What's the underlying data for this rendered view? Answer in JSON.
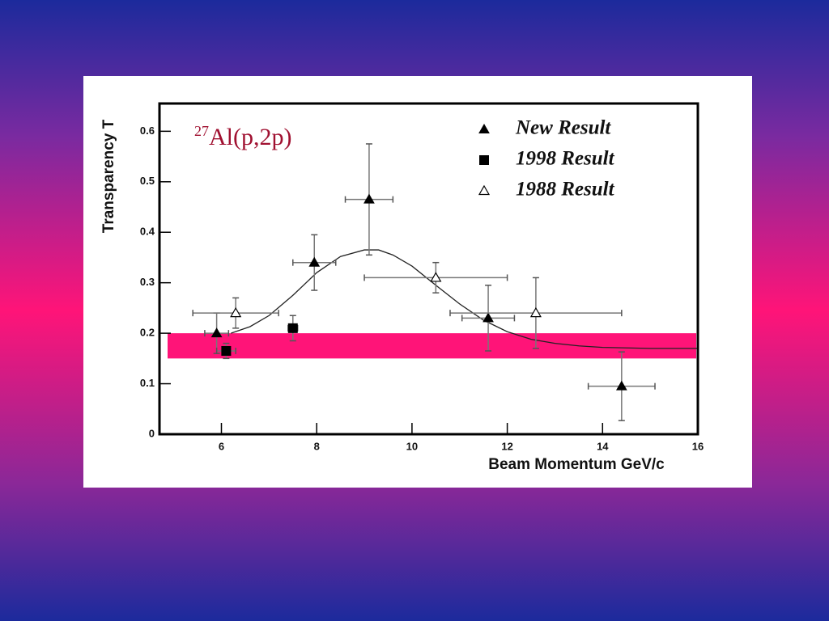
{
  "chart_data": {
    "type": "scatter",
    "x_label": "Beam Momentum GeV/c",
    "y_label": "Transparency T",
    "annotation": {
      "superscript": "27",
      "text": "Al(p,2p)"
    },
    "xlim": [
      4.7,
      16
    ],
    "ylim": [
      0,
      0.655
    ],
    "xticks": [
      6,
      8,
      10,
      12,
      14,
      16
    ],
    "yticks": [
      0,
      0.1,
      0.2,
      0.3,
      0.4,
      0.5,
      0.6
    ],
    "legend": "upper right",
    "band": {
      "y": [
        0.15,
        0.2
      ],
      "color": "#ff1478"
    },
    "fit_curve": {
      "color": "#222222",
      "x": [
        6.2,
        6.6,
        7.0,
        7.5,
        8.0,
        8.5,
        9.0,
        9.3,
        9.6,
        10.0,
        10.5,
        11.0,
        11.5,
        12.0,
        12.5,
        13.0,
        13.5,
        14.0,
        14.5,
        15.0,
        16.0
      ],
      "values": [
        0.2,
        0.213,
        0.235,
        0.275,
        0.32,
        0.352,
        0.365,
        0.365,
        0.355,
        0.333,
        0.295,
        0.258,
        0.226,
        0.203,
        0.188,
        0.18,
        0.175,
        0.172,
        0.171,
        0.17,
        0.17
      ]
    },
    "series": [
      {
        "name": "New Result",
        "color": "#000000",
        "marker": "triangle-filled",
        "x": [
          5.9,
          7.95,
          9.1,
          11.6,
          14.4
        ],
        "values": [
          0.2,
          0.34,
          0.465,
          0.23,
          0.095
        ],
        "xerr": [
          0.25,
          0.45,
          0.5,
          0.55,
          0.7
        ],
        "yerr": [
          0.04,
          0.055,
          0.11,
          0.065,
          0.068
        ]
      },
      {
        "name": "1998 Result",
        "color": "#000000",
        "marker": "square-filled",
        "x": [
          6.1,
          7.5
        ],
        "values": [
          0.165,
          0.21
        ],
        "xerr": [
          0.2,
          0.1
        ],
        "yerr": [
          0.015,
          0.025
        ]
      },
      {
        "name": "1988 Result",
        "color": "#000000",
        "marker": "triangle-open",
        "x": [
          6.3,
          10.5,
          12.6
        ],
        "values": [
          0.24,
          0.31,
          0.24
        ],
        "xerr": [
          0.9,
          1.5,
          1.8
        ],
        "yerr": [
          0.03,
          0.03,
          0.07
        ]
      }
    ]
  }
}
